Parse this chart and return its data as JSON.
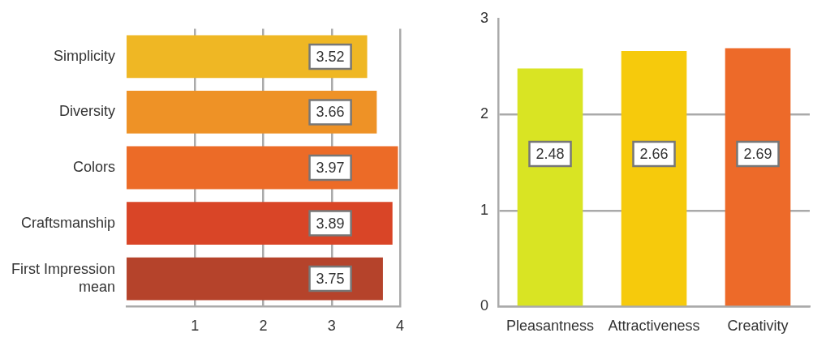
{
  "chart_data": [
    {
      "type": "bar",
      "orientation": "horizontal",
      "categories": [
        "Simplicity",
        "Diversity",
        "Colors",
        "Craftsmanship",
        "First Impression mean"
      ],
      "values": [
        3.52,
        3.66,
        3.97,
        3.89,
        3.75
      ],
      "colors": [
        "#efb724",
        "#ee9226",
        "#ec6b27",
        "#d94527",
        "#b5432b"
      ],
      "xlim": [
        0,
        4
      ],
      "xticks": [
        1,
        2,
        3,
        4
      ],
      "grid": "x",
      "data_labels": true,
      "legend": false
    },
    {
      "type": "bar",
      "categories": [
        "Pleasantness",
        "Attractiveness",
        "Creativity"
      ],
      "values": [
        2.48,
        2.66,
        2.69
      ],
      "colors": [
        "#d9e423",
        "#f6ca0c",
        "#ed6a29"
      ],
      "ylim": [
        0,
        3
      ],
      "yticks": [
        0,
        1,
        2,
        3
      ],
      "grid": "y",
      "data_labels": true,
      "legend": false
    }
  ]
}
